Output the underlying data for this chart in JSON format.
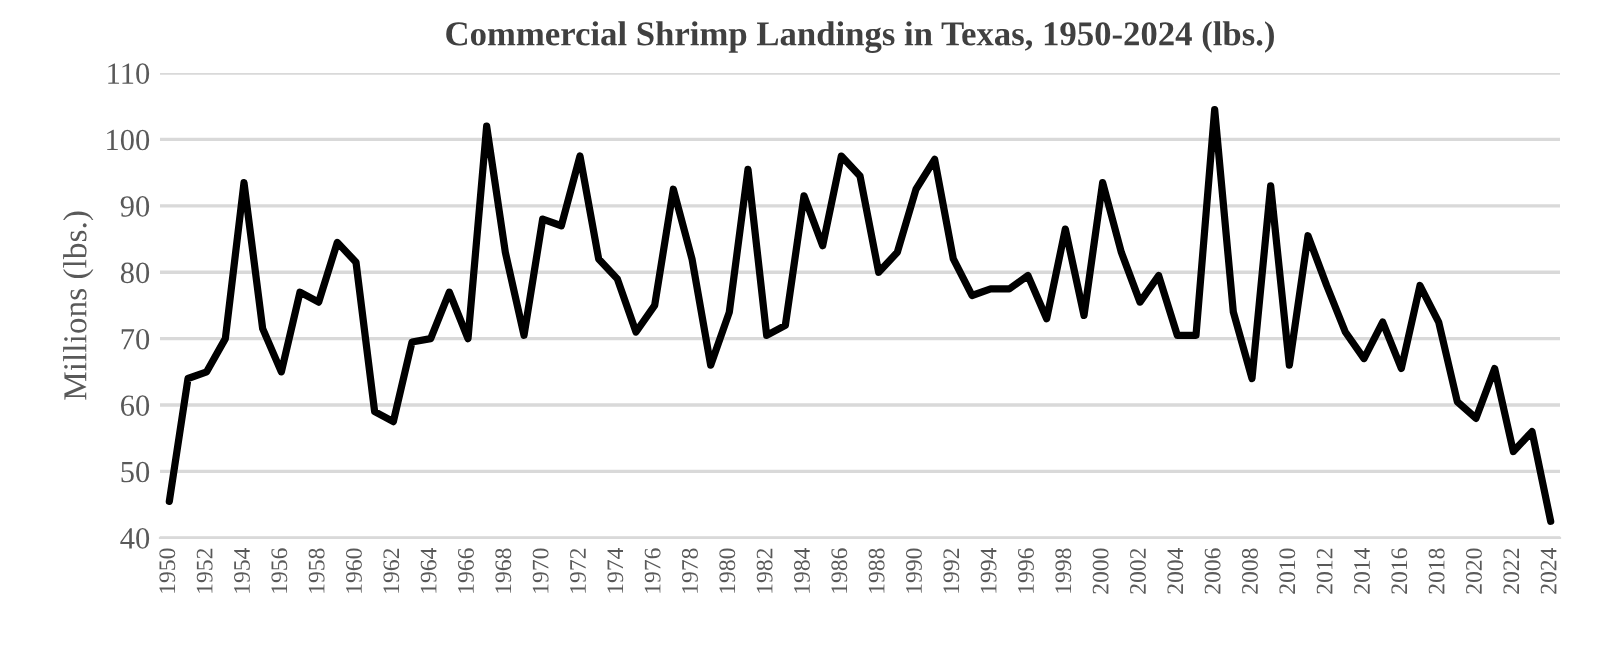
{
  "chart_data": {
    "type": "line",
    "title": "Commercial Shrimp Landings in Texas, 1950-2024 (lbs.)",
    "ylabel": "Millions (lbs.)",
    "x": [
      1950,
      1951,
      1952,
      1953,
      1954,
      1955,
      1956,
      1957,
      1958,
      1959,
      1960,
      1961,
      1962,
      1963,
      1964,
      1965,
      1966,
      1967,
      1968,
      1969,
      1970,
      1971,
      1972,
      1973,
      1974,
      1975,
      1976,
      1977,
      1978,
      1979,
      1980,
      1981,
      1982,
      1983,
      1984,
      1985,
      1986,
      1987,
      1988,
      1989,
      1990,
      1991,
      1992,
      1993,
      1994,
      1995,
      1996,
      1997,
      1998,
      1999,
      2000,
      2001,
      2002,
      2003,
      2004,
      2005,
      2006,
      2007,
      2008,
      2009,
      2010,
      2011,
      2012,
      2013,
      2014,
      2015,
      2016,
      2017,
      2018,
      2019,
      2020,
      2021,
      2022,
      2023,
      2024
    ],
    "series": [
      {
        "color": "#000000",
        "values": [
          45.5,
          64,
          65,
          70,
          93.5,
          71.5,
          65,
          77,
          75.5,
          84.5,
          81.5,
          59,
          57.5,
          69.5,
          70,
          77,
          70,
          102,
          83,
          70.5,
          88,
          87,
          97.5,
          82,
          79,
          71,
          75,
          92.5,
          82,
          66,
          74,
          95.5,
          70.5,
          72,
          91.5,
          84,
          97.5,
          94.5,
          80,
          83,
          92.5,
          97,
          82,
          76.5,
          77.5,
          77.5,
          79.5,
          73,
          86.5,
          73.5,
          93.5,
          83,
          75.5,
          79.5,
          70.5,
          70.5,
          104.5,
          74,
          64,
          93,
          66,
          85.5,
          78,
          71,
          67,
          72.5,
          65.5,
          78,
          72.5,
          60.5,
          58,
          65.5,
          53,
          56,
          42.5
        ]
      }
    ],
    "xlim": [
      1949.5,
      2024.5
    ],
    "xticks": [
      1950,
      1952,
      1954,
      1956,
      1958,
      1960,
      1962,
      1964,
      1966,
      1968,
      1970,
      1972,
      1974,
      1976,
      1978,
      1980,
      1982,
      1984,
      1986,
      1988,
      1990,
      1992,
      1994,
      1996,
      1998,
      2000,
      2002,
      2004,
      2006,
      2008,
      2010,
      2012,
      2014,
      2016,
      2018,
      2020,
      2022,
      2024
    ],
    "ylim": [
      40,
      110
    ],
    "yticks": [
      40,
      50,
      60,
      70,
      80,
      90,
      100,
      110
    ],
    "grid": "y",
    "marker": "none",
    "line_style": "solid"
  }
}
